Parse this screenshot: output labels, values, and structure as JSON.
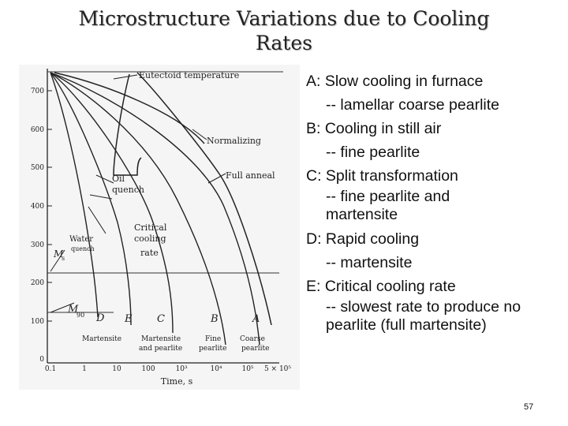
{
  "slide": {
    "title_line1": "Microstructure Variations due to Cooling",
    "title_line2": "Rates",
    "page_number": "57"
  },
  "figure": {
    "eutectoid_label": "Eutectoid temperature",
    "normalizing_label": "Normalizing",
    "full_anneal_label": "Full anneal",
    "oil_quench_label": [
      "Oil",
      "quench"
    ],
    "critical_rate_label": [
      "Critical",
      "cooling",
      "rate"
    ],
    "water_quench_label": [
      "Water",
      "quench"
    ],
    "ms_label": "M",
    "ms_sub": "s",
    "m90_label": "M",
    "m90_sub": "90",
    "curve_letters": [
      "D",
      "E",
      "C",
      "B",
      "A"
    ],
    "bottom_labels": {
      "martensite": "Martensite",
      "martensite_pearlite": [
        "Martensite",
        "and pearlite"
      ],
      "fine_pearlite": [
        "Fine",
        "pearlite"
      ],
      "coarse_pearlite": [
        "Coarse",
        "pearlite"
      ]
    },
    "y_ticks": [
      "700",
      "600",
      "500",
      "400",
      "300",
      "200",
      "100",
      "0"
    ],
    "x_ticks": [
      "0.1",
      "1",
      "10",
      "100",
      "10³",
      "10⁴",
      "10⁵",
      "5 × 10⁵"
    ],
    "x_axis_label": "Time, s"
  },
  "notes": [
    {
      "head": "A: Slow cooling in furnace",
      "lines": [
        "-- lamellar coarse pearlite"
      ]
    },
    {
      "head": "B: Cooling in still air",
      "lines": [
        "-- fine pearlite"
      ]
    },
    {
      "head": "C: Split transformation",
      "lines": [
        "-- fine pearlite and martensite"
      ]
    },
    {
      "head": "D: Rapid cooling",
      "lines": [
        "-- martensite"
      ]
    },
    {
      "head": "E: Critical cooling rate",
      "lines": [
        "-- slowest rate to produce no pearlite (full martensite)"
      ]
    }
  ]
}
